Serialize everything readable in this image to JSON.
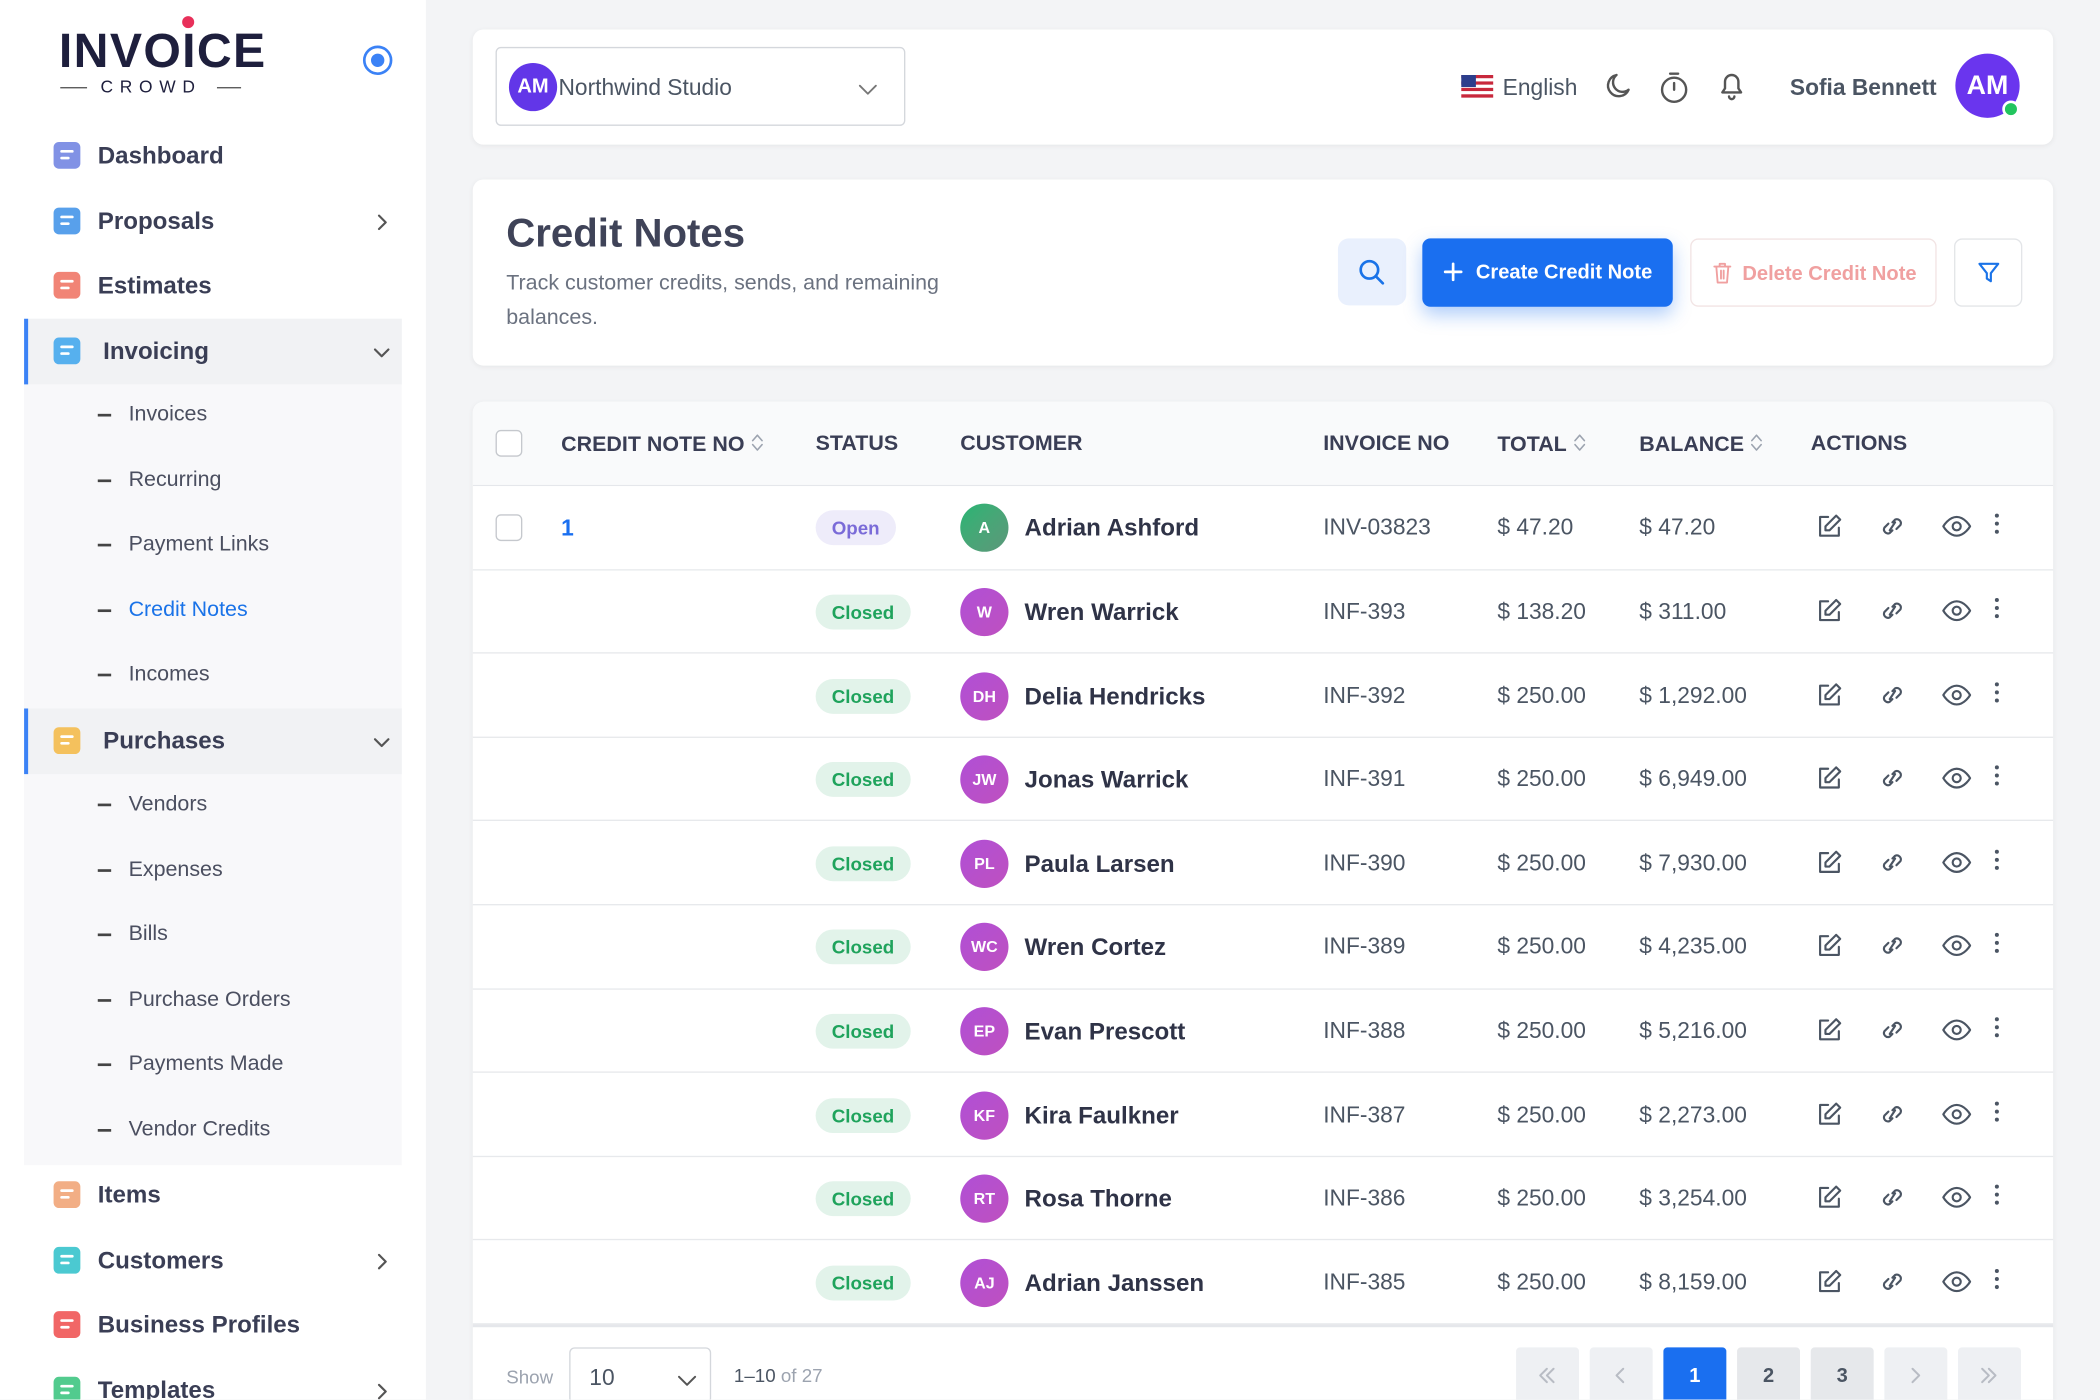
{
  "sidebar": {
    "logo": {
      "word": "INVOICE",
      "tagline": "CROWD"
    },
    "nav": [
      {
        "label": "Dashboard",
        "icon_color": "#6b7fe0"
      },
      {
        "label": "Proposals",
        "icon_color": "#3b8fe8",
        "chevron": "right"
      },
      {
        "label": "Estimates",
        "icon_color": "#ef6f5e"
      },
      {
        "label": "Invoicing",
        "icon_color": "#3ba4ec",
        "chevron": "down",
        "expanded": true,
        "children": [
          {
            "label": "Invoices"
          },
          {
            "label": "Recurring"
          },
          {
            "label": "Payment Links"
          },
          {
            "label": "Credit Notes",
            "active": true
          },
          {
            "label": "Incomes"
          }
        ]
      },
      {
        "label": "Purchases",
        "icon_color": "#f5b942",
        "chevron": "down",
        "expanded": true,
        "children": [
          {
            "label": "Vendors"
          },
          {
            "label": "Expenses"
          },
          {
            "label": "Bills"
          },
          {
            "label": "Purchase Orders"
          },
          {
            "label": "Payments Made"
          },
          {
            "label": "Vendor Credits"
          }
        ]
      },
      {
        "label": "Items",
        "icon_color": "#f0a070"
      },
      {
        "label": "Customers",
        "icon_color": "#2bbfc9",
        "chevron": "right"
      },
      {
        "label": "Business Profiles",
        "icon_color": "#ef4b4b"
      },
      {
        "label": "Templates",
        "icon_color": "#34c27a",
        "chevron": "right"
      }
    ]
  },
  "topbar": {
    "org_initials": "AM",
    "org_name": "Northwind Studio",
    "language": "English",
    "user_name": "Sofia Bennett",
    "user_initials": "AM"
  },
  "header": {
    "title": "Credit Notes",
    "subtitle": "Track customer credits, sends, and remaining balances.",
    "create_button": "Create Credit Note",
    "delete_button": "Delete Credit Note"
  },
  "table": {
    "columns": [
      {
        "label": "CREDIT NOTE NO",
        "sortable": true
      },
      {
        "label": "STATUS"
      },
      {
        "label": "CUSTOMER"
      },
      {
        "label": "INVOICE NO"
      },
      {
        "label": "TOTAL",
        "sortable": true
      },
      {
        "label": "BALANCE",
        "sortable": true
      },
      {
        "label": "ACTIONS"
      }
    ],
    "rows": [
      {
        "number": "1",
        "status": "Open",
        "status_color": "#7a6bd8",
        "initials": "A",
        "avatar_color": "#22b573",
        "customer": "Adrian Ashford",
        "invoice": "INV-03823",
        "total": "$ 47.20",
        "balance": "$ 47.20"
      },
      {
        "number": null,
        "status": "Closed",
        "status_color": "#1fa35c",
        "initials": "W",
        "avatar_color": "#b04fd6",
        "customer": "Wren Warrick",
        "invoice": "INF-393",
        "total": "$ 138.20",
        "balance": "$ 311.00"
      },
      {
        "number": null,
        "status": "Closed",
        "status_color": "#1fa35c",
        "initials": "DH",
        "avatar_color": "#b04fd6",
        "customer": "Delia Hendricks",
        "invoice": "INF-392",
        "total": "$ 250.00",
        "balance": "$ 1,292.00"
      },
      {
        "number": null,
        "status": "Closed",
        "status_color": "#1fa35c",
        "initials": "JW",
        "avatar_color": "#b04fd6",
        "customer": "Jonas Warrick",
        "invoice": "INF-391",
        "total": "$ 250.00",
        "balance": "$ 6,949.00"
      },
      {
        "number": null,
        "status": "Closed",
        "status_color": "#1fa35c",
        "initials": "PL",
        "avatar_color": "#b04fd6",
        "customer": "Paula Larsen",
        "invoice": "INF-390",
        "total": "$ 250.00",
        "balance": "$ 7,930.00"
      },
      {
        "number": null,
        "status": "Closed",
        "status_color": "#1fa35c",
        "initials": "WC",
        "avatar_color": "#b04fd6",
        "customer": "Wren Cortez",
        "invoice": "INF-389",
        "total": "$ 250.00",
        "balance": "$ 4,235.00"
      },
      {
        "number": null,
        "status": "Closed",
        "status_color": "#1fa35c",
        "initials": "EP",
        "avatar_color": "#b04fd6",
        "customer": "Evan Prescott",
        "invoice": "INF-388",
        "total": "$ 250.00",
        "balance": "$ 5,216.00"
      },
      {
        "number": null,
        "status": "Closed",
        "status_color": "#1fa35c",
        "initials": "KF",
        "avatar_color": "#b04fd6",
        "customer": "Kira Faulkner",
        "invoice": "INF-387",
        "total": "$ 250.00",
        "balance": "$ 2,273.00"
      },
      {
        "number": null,
        "status": "Closed",
        "status_color": "#1fa35c",
        "initials": "RT",
        "avatar_color": "#b04fd6",
        "customer": "Rosa Thorne",
        "invoice": "INF-386",
        "total": "$ 250.00",
        "balance": "$ 3,254.00"
      },
      {
        "number": null,
        "status": "Closed",
        "status_color": "#1fa35c",
        "initials": "AJ",
        "avatar_color": "#b04fd6",
        "customer": "Adrian Janssen",
        "invoice": "INF-385",
        "total": "$ 250.00",
        "balance": "$ 8,159.00"
      }
    ]
  },
  "footer": {
    "show_label": "Show",
    "page_size": "10",
    "range_label": "1–10",
    "total_label": "of 27",
    "pages": [
      "1",
      "2",
      "3"
    ],
    "current_page": 0
  }
}
